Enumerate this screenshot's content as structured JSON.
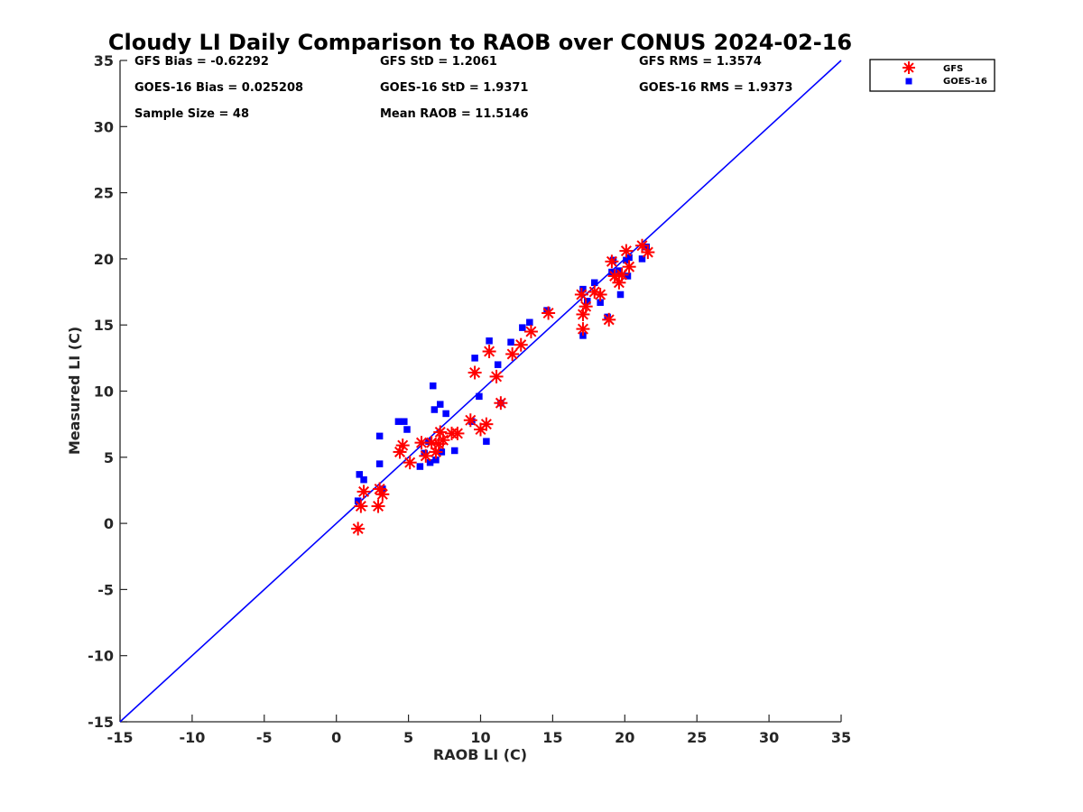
{
  "chart_data": {
    "type": "scatter",
    "title": "Cloudy LI Daily Comparison to RAOB over CONUS 2024-02-16",
    "xlabel": "RAOB LI (C)",
    "ylabel": "Measured LI (C)",
    "xlim": [
      -15,
      35
    ],
    "ylim": [
      -15,
      35
    ],
    "xticks": [
      "-15",
      "-10",
      "-5",
      "0",
      "5",
      "10",
      "15",
      "20",
      "25",
      "30",
      "35"
    ],
    "yticks": [
      "-15",
      "-10",
      "-5",
      "0",
      "5",
      "10",
      "15",
      "20",
      "25",
      "30",
      "35"
    ],
    "grid": false,
    "legend_position": "outside-top-right",
    "reference_line": {
      "from": [
        -15,
        -15
      ],
      "to": [
        35,
        35
      ],
      "color": "#0000ff"
    },
    "stats": [
      [
        "GFS Bias = -0.62292",
        "GFS StD = 1.2061",
        "GFS RMS = 1.3574"
      ],
      [
        "GOES-16 Bias = 0.025208",
        "GOES-16 StD = 1.9371",
        "GOES-16 RMS = 1.9373"
      ],
      [
        "Sample Size = 48",
        "Mean RAOB = 11.5146",
        ""
      ]
    ],
    "series": [
      {
        "name": "GFS",
        "marker": "asterisk",
        "color": "#ff0000",
        "points": [
          [
            1.5,
            -0.4
          ],
          [
            1.7,
            1.3
          ],
          [
            1.9,
            2.4
          ],
          [
            2.9,
            1.3
          ],
          [
            3.0,
            2.6
          ],
          [
            3.2,
            2.2
          ],
          [
            4.4,
            5.4
          ],
          [
            4.6,
            5.9
          ],
          [
            5.1,
            4.6
          ],
          [
            5.9,
            6.1
          ],
          [
            6.2,
            5.1
          ],
          [
            6.6,
            6.1
          ],
          [
            6.9,
            5.4
          ],
          [
            7.1,
            6.0
          ],
          [
            7.2,
            6.9
          ],
          [
            7.4,
            6.3
          ],
          [
            8.0,
            6.8
          ],
          [
            8.4,
            6.8
          ],
          [
            9.3,
            7.8
          ],
          [
            9.6,
            11.4
          ],
          [
            10.0,
            7.1
          ],
          [
            10.4,
            7.5
          ],
          [
            10.6,
            13.0
          ],
          [
            11.1,
            11.1
          ],
          [
            11.4,
            9.1
          ],
          [
            12.2,
            12.8
          ],
          [
            12.8,
            13.5
          ],
          [
            13.5,
            14.5
          ],
          [
            14.7,
            15.9
          ],
          [
            17.0,
            17.3
          ],
          [
            17.1,
            14.7
          ],
          [
            17.1,
            15.8
          ],
          [
            17.3,
            16.4
          ],
          [
            17.9,
            17.5
          ],
          [
            18.3,
            17.3
          ],
          [
            18.9,
            15.4
          ],
          [
            19.1,
            19.8
          ],
          [
            19.3,
            18.7
          ],
          [
            19.6,
            18.2
          ],
          [
            19.8,
            18.8
          ],
          [
            20.1,
            20.6
          ],
          [
            20.3,
            19.4
          ],
          [
            21.2,
            21.0
          ],
          [
            21.6,
            20.5
          ]
        ]
      },
      {
        "name": "GOES-16",
        "marker": "square",
        "color": "#0000ff",
        "points": [
          [
            1.5,
            1.7
          ],
          [
            1.6,
            3.7
          ],
          [
            1.9,
            3.3
          ],
          [
            3.0,
            6.6
          ],
          [
            3.0,
            4.5
          ],
          [
            3.2,
            2.6
          ],
          [
            4.3,
            7.7
          ],
          [
            4.7,
            7.7
          ],
          [
            4.9,
            7.1
          ],
          [
            5.8,
            4.3
          ],
          [
            6.1,
            5.3
          ],
          [
            6.4,
            6.2
          ],
          [
            6.5,
            4.6
          ],
          [
            6.7,
            10.4
          ],
          [
            6.8,
            8.6
          ],
          [
            6.9,
            4.8
          ],
          [
            7.2,
            9.0
          ],
          [
            7.3,
            5.4
          ],
          [
            7.6,
            8.3
          ],
          [
            8.2,
            5.5
          ],
          [
            9.4,
            7.7
          ],
          [
            9.6,
            12.5
          ],
          [
            9.9,
            9.6
          ],
          [
            10.4,
            6.2
          ],
          [
            10.6,
            13.8
          ],
          [
            11.2,
            12.0
          ],
          [
            11.4,
            9.1
          ],
          [
            12.1,
            13.7
          ],
          [
            12.9,
            14.8
          ],
          [
            13.4,
            15.2
          ],
          [
            14.6,
            16.1
          ],
          [
            17.1,
            17.7
          ],
          [
            17.1,
            14.2
          ],
          [
            17.4,
            16.8
          ],
          [
            17.9,
            18.2
          ],
          [
            18.3,
            16.7
          ],
          [
            18.8,
            15.6
          ],
          [
            19.1,
            19.0
          ],
          [
            19.2,
            19.9
          ],
          [
            19.6,
            19.1
          ],
          [
            19.7,
            17.3
          ],
          [
            20.1,
            19.9
          ],
          [
            20.2,
            18.7
          ],
          [
            20.3,
            20.1
          ],
          [
            21.2,
            20.0
          ],
          [
            21.5,
            20.9
          ]
        ]
      }
    ]
  }
}
